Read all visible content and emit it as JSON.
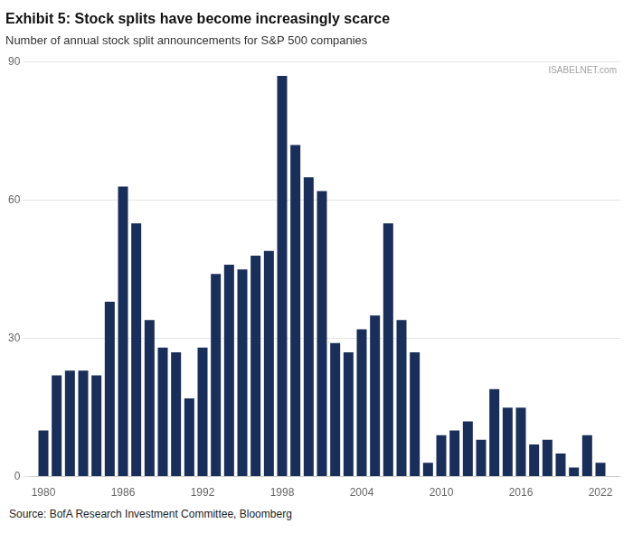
{
  "chart_data": {
    "type": "bar",
    "title": "Exhibit 5: Stock splits have become increasingly scarce",
    "subtitle": "Number of annual stock split announcements for S&P 500 companies",
    "annotations": [
      "Source: BofA Research Investment Committee, Bloomberg",
      "ISABELNET.com"
    ],
    "x": [
      1980,
      1981,
      1982,
      1983,
      1984,
      1985,
      1986,
      1987,
      1988,
      1989,
      1990,
      1991,
      1992,
      1993,
      1994,
      1995,
      1996,
      1997,
      1998,
      1999,
      2000,
      2001,
      2002,
      2003,
      2004,
      2005,
      2006,
      2007,
      2008,
      2009,
      2010,
      2011,
      2012,
      2013,
      2014,
      2015,
      2016,
      2017,
      2018,
      2019,
      2020,
      2021,
      2022
    ],
    "values": [
      10,
      22,
      23,
      23,
      22,
      38,
      63,
      55,
      34,
      28,
      27,
      17,
      28,
      44,
      46,
      45,
      48,
      49,
      87,
      72,
      65,
      62,
      29,
      27,
      32,
      35,
      55,
      34,
      27,
      3,
      9,
      10,
      12,
      8,
      19,
      15,
      15,
      7,
      8,
      5,
      2,
      9,
      3
    ],
    "color": "#1a2e5a",
    "xlim": [
      1979,
      2023.5
    ],
    "xticks": [
      1980,
      1986,
      1992,
      1998,
      2004,
      2010,
      2016,
      2022
    ],
    "ylim": [
      0,
      90
    ],
    "yticks": [
      0,
      30,
      60,
      90
    ],
    "grid": true
  }
}
